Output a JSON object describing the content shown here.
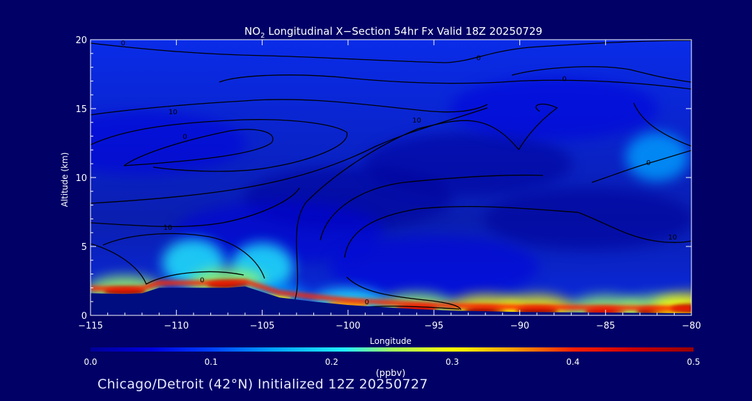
{
  "chart_data": {
    "type": "heatmap",
    "title_prefix": "NO",
    "title_sub": "2",
    "title_rest": " Longitudinal X−Section 54hr  Fx Valid 18Z 20250729",
    "xlabel": "Longitude",
    "ylabel": "Altitude (km)",
    "xlim": [
      -115,
      -80
    ],
    "ylim": [
      0,
      20
    ],
    "x_ticks": [
      -115,
      -110,
      -105,
      -100,
      -95,
      -90,
      -85,
      -80
    ],
    "x_tick_labels": [
      "−115",
      "−110",
      "−105",
      "−100",
      "−95",
      "−90",
      "−85",
      "−80"
    ],
    "y_ticks": [
      0,
      5,
      10,
      15,
      20
    ],
    "y_tick_labels": [
      "0",
      "5",
      "10",
      "15",
      "20"
    ],
    "colorbar": {
      "label": "(ppbv)",
      "range": [
        0.0,
        0.5
      ],
      "ticks": [
        "0.0",
        "0.1",
        "0.2",
        "0.3",
        "0.4",
        "0.5"
      ],
      "colors": [
        "#000099",
        "#0000dd",
        "#0040ff",
        "#00a0ff",
        "#20f0ff",
        "#a0ff60",
        "#ffff00",
        "#ffa000",
        "#ff2000",
        "#cc0000",
        "#990000"
      ]
    },
    "background_value": 0.03,
    "terrain_km": [
      [
        -115,
        1.6
      ],
      [
        -113,
        1.55
      ],
      [
        -112,
        1.6
      ],
      [
        -111,
        2.0
      ],
      [
        -109,
        2.0
      ],
      [
        -107,
        2.0
      ],
      [
        -106,
        2.1
      ],
      [
        -105.5,
        1.9
      ],
      [
        -104,
        1.3
      ],
      [
        -102,
        1.0
      ],
      [
        -100,
        0.75
      ],
      [
        -98,
        0.6
      ],
      [
        -96,
        0.45
      ],
      [
        -94,
        0.35
      ],
      [
        -90,
        0.25
      ],
      [
        -85,
        0.2
      ],
      [
        -80,
        0.15
      ]
    ],
    "surface_no2": [
      {
        "lon": -113,
        "alt": 1.75,
        "ppbv": 0.48
      },
      {
        "lon": -107,
        "alt": 2.25,
        "ppbv": 0.48
      },
      {
        "lon": -104.5,
        "alt": 1.2,
        "ppbv": 0.3
      },
      {
        "lon": -100,
        "alt": 0.8,
        "ppbv": 0.35
      },
      {
        "lon": -96,
        "alt": 0.5,
        "ppbv": 0.45
      },
      {
        "lon": -92,
        "alt": 0.35,
        "ppbv": 0.5
      },
      {
        "lon": -89,
        "alt": 0.35,
        "ppbv": 0.5
      },
      {
        "lon": -85,
        "alt": 0.3,
        "ppbv": 0.45
      },
      {
        "lon": -82,
        "alt": 0.3,
        "ppbv": 0.48
      },
      {
        "lon": -80,
        "alt": 0.5,
        "ppbv": 0.5
      }
    ],
    "plumes": [
      {
        "lon": -109,
        "alt": 3.8,
        "ppbv": 0.18
      },
      {
        "lon": -105,
        "alt": 3.5,
        "ppbv": 0.22
      },
      {
        "lon": -82,
        "alt": 11.5,
        "ppbv": 0.13
      }
    ],
    "contour_labels": [
      {
        "lon": -113.1,
        "alt": 19.6,
        "text": "0"
      },
      {
        "lon": -92.4,
        "alt": 18.5,
        "text": "0"
      },
      {
        "lon": -87.4,
        "alt": 17.0,
        "text": "0"
      },
      {
        "lon": -110.2,
        "alt": 14.6,
        "text": "10"
      },
      {
        "lon": -96,
        "alt": 14.0,
        "text": "10"
      },
      {
        "lon": -109.5,
        "alt": 12.8,
        "text": "0"
      },
      {
        "lon": -82.5,
        "alt": 10.9,
        "text": "0"
      },
      {
        "lon": -110.5,
        "alt": 6.2,
        "text": "10"
      },
      {
        "lon": -81.1,
        "alt": 5.5,
        "text": "10"
      },
      {
        "lon": -108.5,
        "alt": 2.4,
        "text": "0"
      },
      {
        "lon": -98.9,
        "alt": 0.8,
        "text": "0"
      }
    ]
  },
  "footer": "Chicago/Detroit (42°N) Initialized 12Z 20250727"
}
